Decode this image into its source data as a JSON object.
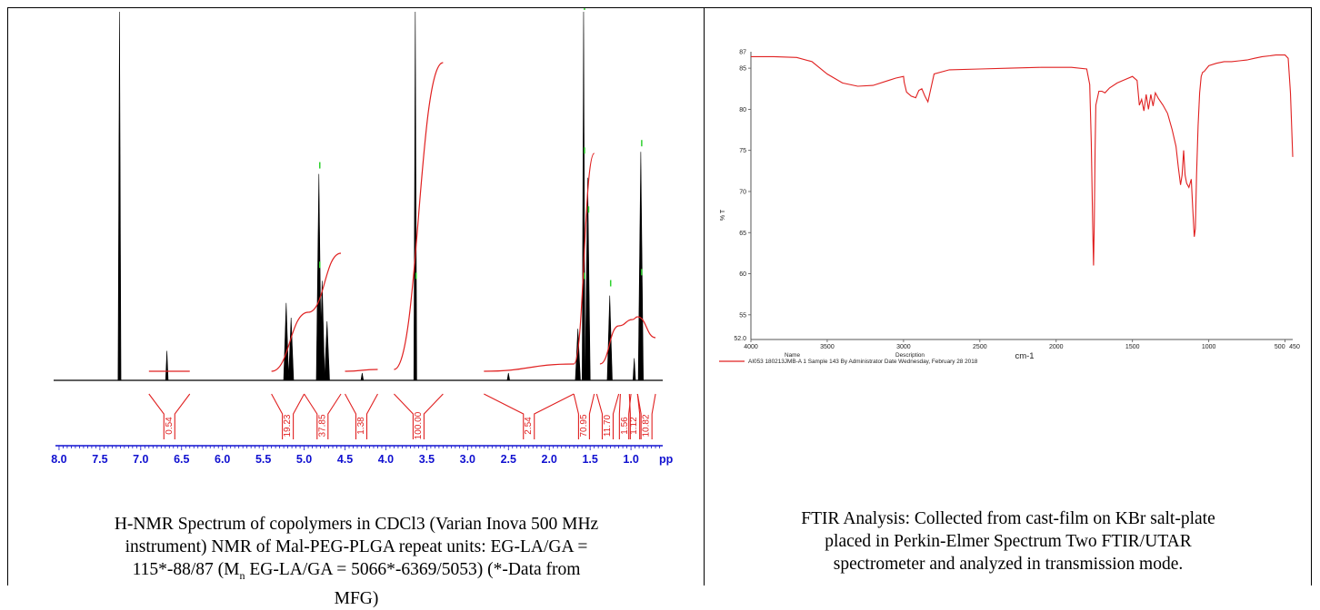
{
  "nmr": {
    "caption_line1": "H-NMR Spectrum of copolymers in CDCl3 (Varian Inova 500 MHz",
    "caption_line2": "instrument) NMR of Mal-PEG-PLGA repeat units: EG-LA/GA =",
    "caption_line3_a": "115*-88/87 (M",
    "caption_line3_sub": "n",
    "caption_line3_b": " EG-LA/GA = 5066*-6369/5053) (*-Data from",
    "caption_line4": "MFG)",
    "axis_unit": "pp"
  },
  "ftir": {
    "caption_line1": "FTIR Analysis: Collected from cast-film on KBr salt-plate",
    "caption_line2": "placed in Perkin-Elmer Spectrum Two FTIR/UTAR",
    "caption_line3": "spectrometer and analyzed in transmission mode.",
    "xlabel": "cm-1",
    "ylabel": "% T",
    "legend_name_header": "Name",
    "legend_desc_header": "Description",
    "legend_entry": "AI053 180213JMB-A 1    Sample 143 By Administrator Date Wednesday, February 28 2018"
  },
  "chart_data": [
    {
      "type": "line",
      "title": "",
      "xlabel": "",
      "ylabel": "",
      "x_unit_label": "pp",
      "xlim": [
        8.4,
        0.3
      ],
      "x_reversed": true,
      "x_ticks": [
        8.0,
        7.5,
        7.0,
        6.5,
        6.0,
        5.5,
        5.0,
        4.5,
        4.0,
        3.5,
        3.0,
        2.5,
        2.0,
        1.5,
        1.0
      ],
      "x_tick_labels": [
        "8.0",
        "7.5",
        "7.0",
        "6.5",
        "6.0",
        "5.5",
        "5.0",
        "4.5",
        "4.0",
        "3.5",
        "3.0",
        "2.5",
        "2.0",
        "1.5",
        "1.0"
      ],
      "grid": false,
      "peaks": [
        {
          "ppm": 7.26,
          "height": 1.0
        },
        {
          "ppm": 6.68,
          "height": 0.08
        },
        {
          "ppm": 5.22,
          "height": 0.21
        },
        {
          "ppm": 5.16,
          "height": 0.17
        },
        {
          "ppm": 4.82,
          "height": 0.56
        },
        {
          "ppm": 4.78,
          "height": 0.27
        },
        {
          "ppm": 4.72,
          "height": 0.16
        },
        {
          "ppm": 4.29,
          "height": 0.02
        },
        {
          "ppm": 3.64,
          "height": 1.0
        },
        {
          "ppm": 2.5,
          "height": 0.02
        },
        {
          "ppm": 1.65,
          "height": 0.14
        },
        {
          "ppm": 1.58,
          "height": 1.0
        },
        {
          "ppm": 1.53,
          "height": 0.55
        },
        {
          "ppm": 1.26,
          "height": 0.23
        },
        {
          "ppm": 0.96,
          "height": 0.06
        },
        {
          "ppm": 0.88,
          "height": 0.62
        }
      ],
      "integrals": [
        {
          "label": "0.54",
          "from": 6.9,
          "to": 6.4
        },
        {
          "label": "19.23",
          "from": 5.4,
          "to": 5.0
        },
        {
          "label": "37.85",
          "from": 5.0,
          "to": 4.55
        },
        {
          "label": "1.38",
          "from": 4.5,
          "to": 4.1
        },
        {
          "label": "100.00",
          "from": 3.9,
          "to": 3.3
        },
        {
          "label": "2.54",
          "from": 2.8,
          "to": 1.7
        },
        {
          "label": "70.95",
          "from": 1.7,
          "to": 1.45
        },
        {
          "label": "11.70",
          "from": 1.42,
          "to": 1.15
        },
        {
          "label": "1.56",
          "from": 1.13,
          "to": 1.02
        },
        {
          "label": "1.12",
          "from": 1.0,
          "to": 0.92
        },
        {
          "label": "10.82",
          "from": 0.92,
          "to": 0.7
        }
      ]
    },
    {
      "type": "line",
      "title": "",
      "xlabel": "cm-1",
      "ylabel": "% T",
      "xlim": [
        4000,
        450
      ],
      "x_reversed": true,
      "ylim": [
        52.0,
        87.0
      ],
      "x_ticks": [
        4000,
        3500,
        3000,
        2500,
        2000,
        1500,
        1000,
        500
      ],
      "x_tick_labels": [
        "4000",
        "3500",
        "3000",
        "2500",
        "2000",
        "1500",
        "1000",
        "500"
      ],
      "x_end_label": "450",
      "y_ticks": [
        55,
        60,
        65,
        70,
        75,
        80,
        85
      ],
      "y_tick_labels": [
        "55",
        "60",
        "65",
        "70",
        "75",
        "80",
        "85"
      ],
      "y_end_labels": [
        "52.0",
        "87"
      ],
      "grid": false,
      "series": [
        {
          "name": "AI053 180213JMB-A 1",
          "color": "#e02020",
          "x": [
            4000,
            3850,
            3700,
            3600,
            3500,
            3400,
            3300,
            3200,
            3100,
            3050,
            3000,
            2996,
            2980,
            2950,
            2920,
            2900,
            2880,
            2860,
            2840,
            2800,
            2700,
            2500,
            2300,
            2100,
            1900,
            1800,
            1780,
            1770,
            1760,
            1755,
            1750,
            1745,
            1740,
            1720,
            1700,
            1680,
            1650,
            1600,
            1550,
            1500,
            1470,
            1455,
            1440,
            1425,
            1410,
            1395,
            1380,
            1365,
            1350,
            1330,
            1300,
            1270,
            1240,
            1215,
            1200,
            1185,
            1175,
            1165,
            1155,
            1145,
            1130,
            1115,
            1105,
            1095,
            1088,
            1080,
            1070,
            1060,
            1050,
            1040,
            1030,
            1000,
            950,
            900,
            850,
            800,
            750,
            700,
            650,
            600,
            560,
            520,
            500,
            480,
            465,
            450
          ],
          "y": [
            86.4,
            86.4,
            86.3,
            85.8,
            84.3,
            83.2,
            82.8,
            82.9,
            83.5,
            83.8,
            84.0,
            83.3,
            82.1,
            81.6,
            81.4,
            82.3,
            82.5,
            81.6,
            80.9,
            84.3,
            84.8,
            84.9,
            85.0,
            85.1,
            85.1,
            84.9,
            83.0,
            76.0,
            65.0,
            61.0,
            66.0,
            75.0,
            80.5,
            82.2,
            82.2,
            82.0,
            82.6,
            83.2,
            83.6,
            84.0,
            83.5,
            80.5,
            81.2,
            79.8,
            81.8,
            80.0,
            81.8,
            80.4,
            82.0,
            81.3,
            80.5,
            79.5,
            77.5,
            75.5,
            73.0,
            70.8,
            72.0,
            75.0,
            72.0,
            71.0,
            70.5,
            71.5,
            68.0,
            64.5,
            65.5,
            72.0,
            78.0,
            82.0,
            84.0,
            84.5,
            84.6,
            85.3,
            85.6,
            85.8,
            85.8,
            85.9,
            86.0,
            86.2,
            86.4,
            86.5,
            86.6,
            86.6,
            86.6,
            86.2,
            82.0,
            74.2
          ]
        }
      ]
    }
  ]
}
